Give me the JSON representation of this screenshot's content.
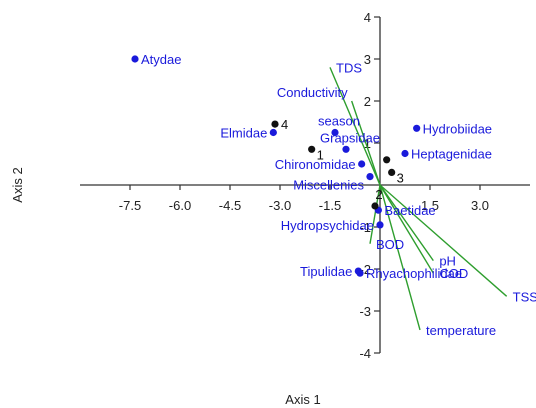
{
  "chart_data": {
    "type": "scatter",
    "xlabel": "Axis 1",
    "ylabel": "Axis 2",
    "xlim": [
      -9.0,
      4.5
    ],
    "ylim": [
      -4,
      4
    ],
    "x_ticks": [
      -7.5,
      -6.0,
      -4.5,
      -3.0,
      -1.5,
      1.5,
      3.0
    ],
    "x_tick_labels": [
      "-7.5",
      "-6.0",
      "-4.5",
      "-3.0",
      "-1.5",
      "1.5",
      "3.0"
    ],
    "y_ticks": [
      4,
      3,
      2,
      1,
      -1,
      -2,
      -3,
      -4
    ],
    "y_tick_labels": [
      "4",
      "3",
      "2",
      "1",
      "-1",
      "-2",
      "-3",
      "-4"
    ],
    "colors": {
      "taxa": "#1a1adb",
      "sites": "#111111",
      "vectors": "#2e9e2e",
      "axes": "#333333"
    },
    "taxa": [
      {
        "label": "Atydae",
        "x": -7.35,
        "y": 3.0,
        "anchor": "right"
      },
      {
        "label": "Elmidae",
        "x": -3.2,
        "y": 1.25,
        "anchor": "left"
      },
      {
        "label": "season",
        "x": -1.35,
        "y": 1.25,
        "anchor": "left-up"
      },
      {
        "label": "Grapsidae",
        "x": -1.02,
        "y": 0.85,
        "anchor": "left-up"
      },
      {
        "label": "Chironomidae",
        "x": -0.55,
        "y": 0.5,
        "anchor": "left"
      },
      {
        "label": "Miscellenies",
        "x": -0.3,
        "y": 0.2,
        "anchor": "left-down"
      },
      {
        "label": "Hydrobiidae",
        "x": 1.1,
        "y": 1.35,
        "anchor": "right"
      },
      {
        "label": "Heptagenidae",
        "x": 0.75,
        "y": 0.75,
        "anchor": "right"
      },
      {
        "label": "Baetidae",
        "x": -0.05,
        "y": -0.6,
        "anchor": "right"
      },
      {
        "label": "Hydropsychidae",
        "x": 0.0,
        "y": -0.95,
        "anchor": "left"
      },
      {
        "label": "Tipulidae",
        "x": -0.65,
        "y": -2.05,
        "anchor": "left"
      },
      {
        "label": "Rhyachophilidae",
        "x": -0.6,
        "y": -2.1,
        "anchor": "right"
      }
    ],
    "sites": [
      {
        "label": "4",
        "x": -3.15,
        "y": 1.45,
        "anchor": "right"
      },
      {
        "label": "1",
        "x": -2.05,
        "y": 0.85,
        "anchor": "right-down"
      },
      {
        "label": "2",
        "x": -0.15,
        "y": -0.5,
        "anchor": "left-up"
      },
      {
        "label": "3",
        "x": 0.35,
        "y": 0.3,
        "anchor": "right-down"
      },
      {
        "label": "",
        "x": 0.2,
        "y": 0.6,
        "anchor": "none"
      }
    ],
    "vectors": [
      {
        "label": "TDS",
        "x": -1.5,
        "y": 2.8,
        "anchor": "tip-right"
      },
      {
        "label": "Conductivity",
        "x": -0.85,
        "y": 2.0,
        "anchor": "tip-left"
      },
      {
        "label": "BOD",
        "x": -0.3,
        "y": -1.4,
        "anchor": "tip-right"
      },
      {
        "label": "pH",
        "x": 1.6,
        "y": -1.8,
        "anchor": "tip-right"
      },
      {
        "label": "COD",
        "x": 1.6,
        "y": -2.1,
        "anchor": "tip-right"
      },
      {
        "label": "TSS",
        "x": 3.8,
        "y": -2.65,
        "anchor": "tip-right"
      },
      {
        "label": "temperature",
        "x": 1.2,
        "y": -3.45,
        "anchor": "tip-right"
      }
    ]
  }
}
